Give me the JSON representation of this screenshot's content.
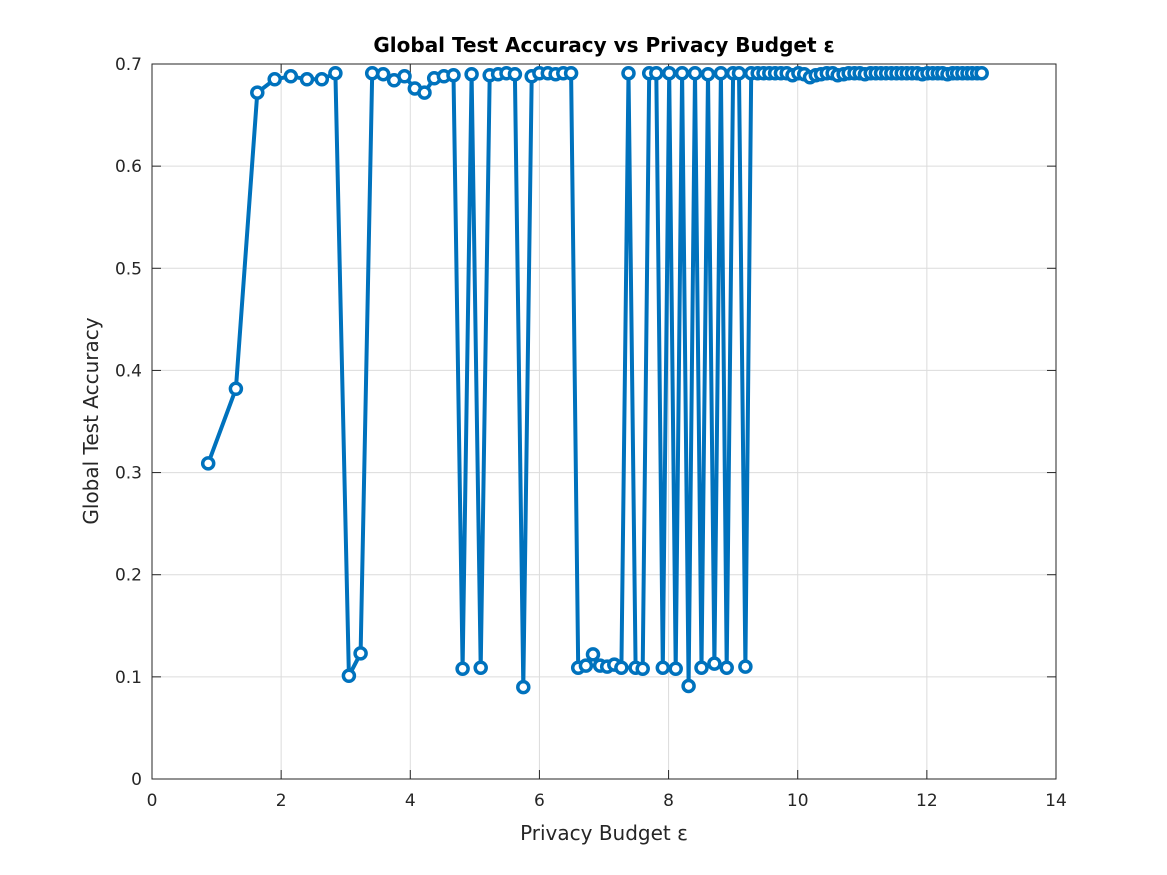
{
  "chart_data": {
    "type": "line",
    "title": "Global Test Accuracy vs Privacy Budget ε",
    "xlabel": "Privacy Budget ε",
    "ylabel": "Global Test Accuracy",
    "xlim": [
      0,
      14
    ],
    "ylim": [
      0,
      0.7
    ],
    "xticks": [
      0,
      2,
      4,
      6,
      8,
      10,
      12,
      14
    ],
    "yticks": [
      0,
      0.1,
      0.2,
      0.3,
      0.4,
      0.5,
      0.6,
      0.7
    ],
    "xtick_labels": [
      "0",
      "2",
      "4",
      "6",
      "8",
      "10",
      "12",
      "14"
    ],
    "ytick_labels": [
      "0",
      "0.1",
      "0.2",
      "0.3",
      "0.4",
      "0.5",
      "0.6",
      "0.7"
    ],
    "grid": true,
    "color": "#0072BD",
    "marker": "circle",
    "series": [
      {
        "x": [
          0.87,
          1.3,
          1.63,
          1.9,
          2.15,
          2.4,
          2.63,
          2.84,
          3.05,
          3.23,
          3.41,
          3.58,
          3.75,
          3.91,
          4.07,
          4.22,
          4.37,
          4.52,
          4.67,
          4.81,
          4.95,
          5.09,
          5.23,
          5.36,
          5.49,
          5.62,
          5.75,
          5.88,
          6.0,
          6.13,
          6.25,
          6.37,
          6.49,
          6.6,
          6.72,
          6.83,
          6.94,
          7.05,
          7.16,
          7.27,
          7.38,
          7.49,
          7.6,
          7.7,
          7.81,
          7.91,
          8.01,
          8.11,
          8.21,
          8.31,
          8.41,
          8.51,
          8.61,
          8.71,
          8.81,
          8.9,
          9.0,
          9.09,
          9.19,
          9.28,
          9.38,
          9.47,
          9.56,
          9.65,
          9.74,
          9.83,
          9.92,
          10.01,
          10.1,
          10.19,
          10.28,
          10.36,
          10.45,
          10.54,
          10.62,
          10.71,
          10.79,
          10.88,
          10.96,
          11.04,
          11.13,
          11.21,
          11.29,
          11.37,
          11.45,
          11.53,
          11.61,
          11.69,
          11.77,
          11.85,
          11.93,
          12.01,
          12.09,
          12.17,
          12.24,
          12.32,
          12.4,
          12.47,
          12.55,
          12.63,
          12.7,
          12.78,
          12.85
        ],
        "y": [
          0.309,
          0.382,
          0.672,
          0.685,
          0.688,
          0.685,
          0.685,
          0.691,
          0.101,
          0.123,
          0.691,
          0.69,
          0.684,
          0.688,
          0.676,
          0.672,
          0.686,
          0.688,
          0.689,
          0.108,
          0.69,
          0.109,
          0.689,
          0.69,
          0.691,
          0.69,
          0.09,
          0.688,
          0.691,
          0.691,
          0.69,
          0.691,
          0.691,
          0.109,
          0.111,
          0.122,
          0.111,
          0.11,
          0.112,
          0.109,
          0.691,
          0.109,
          0.108,
          0.691,
          0.691,
          0.109,
          0.691,
          0.108,
          0.691,
          0.091,
          0.691,
          0.109,
          0.69,
          0.113,
          0.691,
          0.109,
          0.691,
          0.691,
          0.11,
          0.691,
          0.691,
          0.691,
          0.691,
          0.691,
          0.691,
          0.691,
          0.689,
          0.691,
          0.69,
          0.687,
          0.689,
          0.69,
          0.691,
          0.691,
          0.689,
          0.69,
          0.691,
          0.691,
          0.691,
          0.69,
          0.691,
          0.691,
          0.691,
          0.691,
          0.691,
          0.691,
          0.691,
          0.691,
          0.691,
          0.691,
          0.69,
          0.691,
          0.691,
          0.691,
          0.691,
          0.69,
          0.691,
          0.691,
          0.691,
          0.691,
          0.691,
          0.691,
          0.691
        ]
      }
    ]
  }
}
